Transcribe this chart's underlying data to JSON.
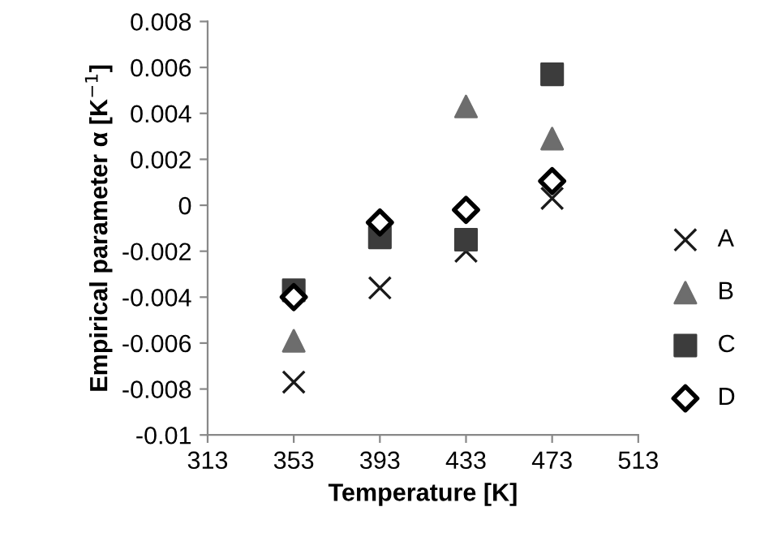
{
  "chart_data": {
    "type": "scatter",
    "xlabel": "Temperature [K]",
    "ylabel": "Empirical parameter α [K$^{−1}$]",
    "x": [
      353,
      393,
      433,
      473
    ],
    "series": [
      {
        "name": "A",
        "color": "#1a1a1a",
        "marker": "cross",
        "values": [
          -0.0077,
          -0.0036,
          -0.002,
          0.0003
        ]
      },
      {
        "name": "B",
        "color": "#6d6d6d",
        "marker": "triangle",
        "values": [
          -0.0059,
          null,
          0.0043,
          0.0029
        ]
      },
      {
        "name": "C",
        "color": "#3c3c3c",
        "marker": "square",
        "values": [
          -0.0037,
          -0.0014,
          -0.0015,
          0.0057
        ]
      },
      {
        "name": "D",
        "color": "#000000",
        "marker": "diamond",
        "values": [
          -0.004,
          -0.00075,
          -0.0002,
          0.00105
        ]
      }
    ],
    "xlim": [
      313,
      513
    ],
    "xticks": [
      313,
      353,
      393,
      433,
      473,
      513
    ],
    "ylim": [
      -0.01,
      0.008
    ],
    "yticks": [
      {
        "value": -0.01,
        "label": "-0.01"
      },
      {
        "value": -0.008,
        "label": "-0.008"
      },
      {
        "value": -0.006,
        "label": "-0.006"
      },
      {
        "value": -0.004,
        "label": "-0.004"
      },
      {
        "value": -0.002,
        "label": "-0.002"
      },
      {
        "value": 0,
        "label": "0"
      },
      {
        "value": 0.002,
        "label": "0.002"
      },
      {
        "value": 0.004,
        "label": "0.004"
      },
      {
        "value": 0.006,
        "label": "0.006"
      },
      {
        "value": 0.008,
        "label": "0.008"
      }
    ],
    "grid": false,
    "legend": "right"
  }
}
